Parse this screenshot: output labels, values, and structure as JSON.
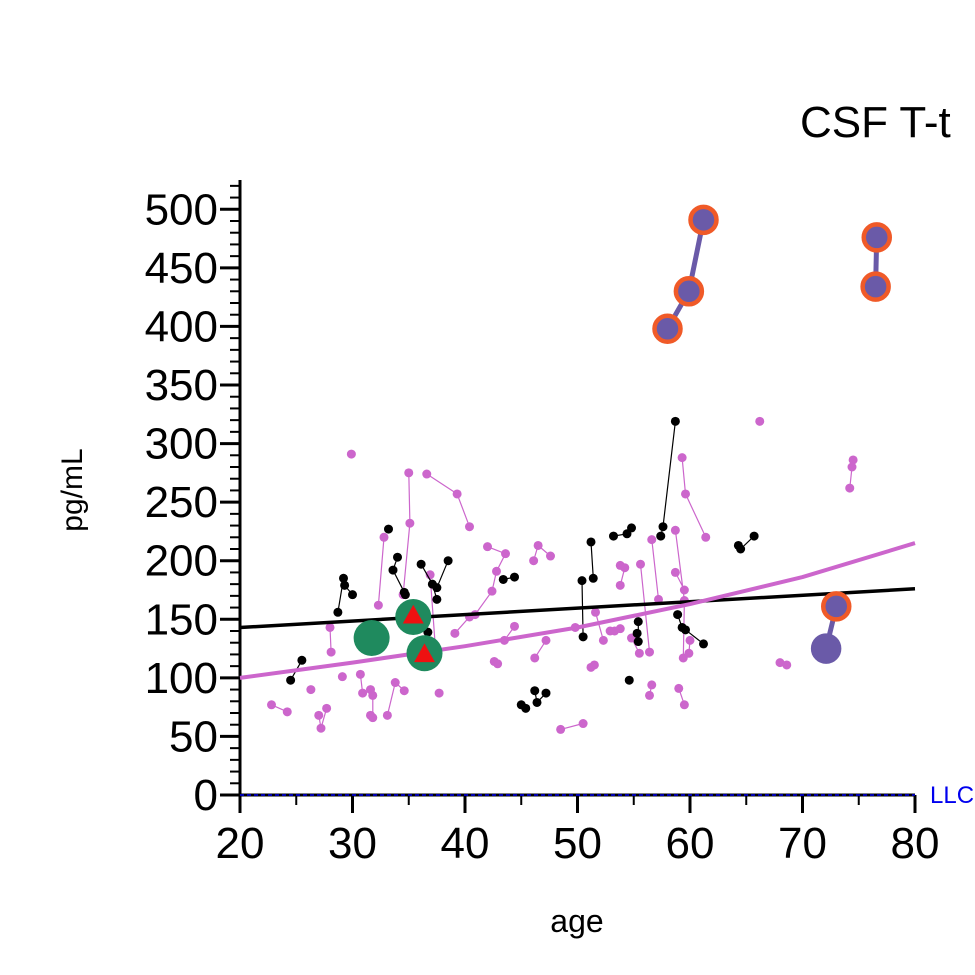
{
  "chart_data": {
    "type": "scatter",
    "title": "CSF T-t",
    "xlabel": "age",
    "ylabel": "pg/mL",
    "xlim": [
      20,
      80
    ],
    "ylim": [
      0,
      525
    ],
    "xticks": [
      20,
      30,
      40,
      50,
      60,
      70,
      80
    ],
    "yticks": [
      0,
      50,
      100,
      150,
      200,
      250,
      300,
      350,
      400,
      450,
      500
    ],
    "xminorticks": [
      25,
      35,
      45,
      55,
      65,
      75
    ],
    "yminorticks": [
      10,
      20,
      30,
      40,
      60,
      70,
      80,
      90,
      110,
      120,
      130,
      140,
      160,
      170,
      180,
      190,
      210,
      220,
      230,
      240,
      260,
      270,
      280,
      290,
      310,
      320,
      330,
      340,
      360,
      370,
      380,
      390,
      410,
      420,
      430,
      440,
      460,
      470,
      480,
      490,
      510,
      520
    ],
    "lloq": {
      "value": 0,
      "label": "LLC",
      "color": "#0000ee"
    },
    "series": [
      {
        "color": "#cc66cc",
        "marker": "circle",
        "size": 4.5,
        "linewidth": 1.2,
        "x": [
          22.8,
          24.2,
          null,
          26.3,
          null,
          27.0,
          27.2,
          27.7,
          null,
          28.0,
          28.1,
          null,
          29.1,
          null,
          29.9,
          null,
          30.7,
          30.9,
          31.6,
          null,
          31.6,
          31.8,
          31.8,
          null,
          32.3,
          32.8,
          null,
          33.1,
          33.8,
          34.6,
          null,
          35.0,
          35.1,
          34.5,
          null,
          36.6,
          39.3,
          40.4,
          null,
          36.9,
          37.4,
          null,
          37.7,
          null,
          39.1,
          40.4,
          null,
          42.0,
          43.6,
          42.8,
          42.4,
          40.9,
          null,
          42.6,
          42.9,
          null,
          43.5,
          44.4,
          null,
          46.1,
          46.5,
          47.6,
          null,
          46.2,
          47.2,
          null,
          48.5,
          50.5,
          null,
          49.8,
          null,
          51.2,
          51.5,
          null,
          51.6,
          52.3,
          null,
          52.9,
          53.3,
          53.8,
          null,
          53.8,
          54.2,
          53.8,
          null,
          54.8,
          55.5,
          null,
          55.6,
          56.4,
          null,
          56.6,
          57.2,
          null,
          56.4,
          56.6,
          null,
          58.7,
          59.5,
          59.4,
          null,
          59.0,
          59.5,
          null,
          58.7,
          59.5,
          null,
          59.3,
          59.6,
          61.4,
          null,
          60.0,
          59.9,
          null,
          66.2,
          null,
          68.0,
          68.6,
          null,
          74.5,
          74.4,
          74.2
        ],
        "values": [
          77,
          71,
          null,
          90,
          null,
          68,
          57,
          74,
          null,
          143,
          122,
          null,
          101,
          null,
          291,
          null,
          103,
          87,
          90,
          null,
          68,
          66,
          85,
          null,
          162,
          220,
          null,
          68,
          96,
          89,
          null,
          275,
          232,
          171,
          null,
          274,
          257,
          229,
          null,
          188,
          121,
          null,
          87,
          null,
          138,
          152,
          null,
          212,
          206,
          191,
          174,
          154,
          null,
          114,
          112,
          null,
          132,
          144,
          null,
          200,
          213,
          204,
          null,
          117,
          132,
          null,
          56,
          61,
          null,
          143,
          null,
          109,
          111,
          null,
          156,
          132,
          null,
          140,
          140,
          142,
          null,
          196,
          194,
          179,
          null,
          134,
          121,
          null,
          197,
          122,
          null,
          218,
          167,
          null,
          85,
          94,
          null,
          226,
          166,
          117,
          null,
          91,
          77,
          null,
          190,
          175,
          null,
          288,
          257,
          220,
          null,
          132,
          121,
          null,
          319,
          null,
          113,
          111,
          null,
          286,
          280,
          262
        ]
      },
      {
        "color": "#000000",
        "marker": "circle",
        "size": 4.5,
        "linewidth": 1.2,
        "x": [
          24.5,
          25.5,
          null,
          28.7,
          29.2,
          29.3,
          30.0,
          null,
          33.2,
          null,
          34.0,
          33.6,
          34.6,
          34.7,
          null,
          36.1,
          37.1,
          37.5,
          null,
          38.5,
          37.5,
          null,
          36.7,
          null,
          43.4,
          44.4,
          null,
          45.0,
          45.4,
          null,
          46.2,
          46.4,
          47.2,
          null,
          50.4,
          50.5,
          null,
          51.2,
          51.4,
          null,
          53.2,
          54.4,
          54.8,
          null,
          54.6,
          null,
          55.3,
          55.4,
          55.4,
          null,
          57.4,
          57.6,
          58.7,
          null,
          58.9,
          59.3,
          59.6,
          61.2,
          null,
          64.3,
          64.5,
          65.7
        ],
        "values": [
          98,
          115,
          null,
          156,
          185,
          179,
          171,
          null,
          227,
          null,
          203,
          192,
          173,
          171,
          null,
          197,
          180,
          167,
          null,
          200,
          177,
          null,
          139,
          null,
          184,
          186,
          null,
          77,
          74,
          null,
          89,
          79,
          87,
          null,
          183,
          135,
          null,
          216,
          185,
          null,
          221,
          223,
          228,
          null,
          98,
          null,
          138,
          131,
          148,
          null,
          221,
          229,
          319,
          null,
          154,
          143,
          141,
          129,
          null,
          213,
          210,
          221
        ]
      },
      {
        "color": "#000000",
        "marker": "none",
        "linewidth": 3.5,
        "x": [
          20,
          80
        ],
        "values": [
          143,
          176
        ]
      },
      {
        "color": "#cc66cc",
        "marker": "none",
        "linewidth": 4,
        "x": [
          20,
          30,
          40,
          50,
          60,
          70,
          80
        ],
        "values": [
          100,
          113,
          127,
          143,
          163,
          186,
          215
        ]
      },
      {
        "color": "#6a5aa8",
        "marker": "circle",
        "size": 13,
        "linewidth": 5,
        "edgecolors": [
          "#f05a28",
          "#f05a28",
          "#f05a28",
          null,
          "#f05a28",
          "#f05a28",
          null,
          "#6a5aa8",
          "#f05a28"
        ],
        "x": [
          58.0,
          59.9,
          61.2,
          null,
          76.5,
          76.6,
          null,
          72.1,
          73.0
        ],
        "values": [
          398,
          430,
          491,
          null,
          434,
          476,
          null,
          125,
          161
        ]
      },
      {
        "color": "#1f8a5e",
        "marker": "circle",
        "size": 18,
        "linewidth": 0,
        "x": [
          31.7,
          35.4,
          36.4
        ],
        "values": [
          134,
          152,
          121
        ]
      },
      {
        "color": "#ee1111",
        "marker": "triangle",
        "size": 11,
        "linewidth": 0,
        "x": [
          35.4,
          36.4
        ],
        "values": [
          153,
          120
        ]
      }
    ]
  }
}
